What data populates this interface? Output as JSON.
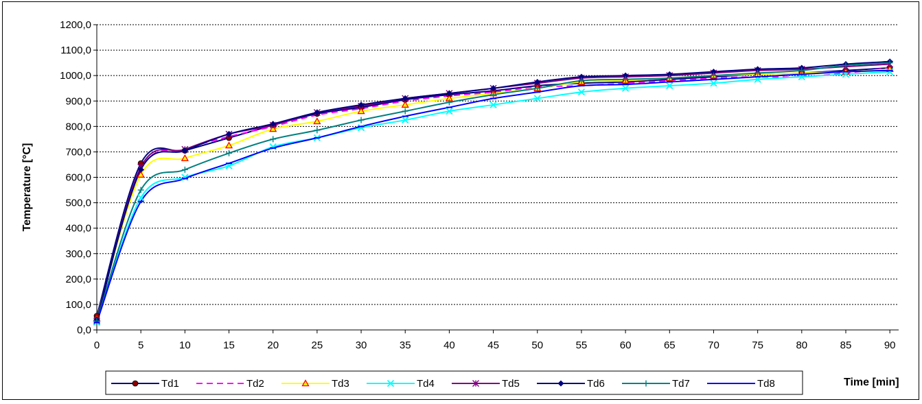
{
  "chart_data": {
    "type": "line",
    "xlabel": "Time [min]",
    "ylabel": "Temperature [°C]",
    "xlim": [
      0,
      91
    ],
    "ylim": [
      0,
      1200
    ],
    "x_ticks": [
      0,
      5,
      10,
      15,
      20,
      25,
      30,
      35,
      40,
      45,
      50,
      55,
      60,
      65,
      70,
      75,
      80,
      85,
      90
    ],
    "y_ticks": [
      "0,0",
      "100,0",
      "200,0",
      "300,0",
      "400,0",
      "500,0",
      "600,0",
      "700,0",
      "800,0",
      "900,0",
      "1000,0",
      "1100,0",
      "1200,0"
    ],
    "grid": "horizontal dotted",
    "legend_position": "bottom",
    "x": [
      0,
      5,
      10,
      15,
      20,
      25,
      30,
      35,
      40,
      45,
      50,
      55,
      60,
      65,
      70,
      75,
      80,
      85,
      90
    ],
    "series": [
      {
        "name": "Td1",
        "color": "#000080",
        "marker": "circle",
        "marker_color": "#8b0000",
        "dash": false,
        "values": [
          55,
          655,
          705,
          755,
          805,
          850,
          875,
          905,
          925,
          940,
          960,
          970,
          975,
          985,
          995,
          1005,
          1010,
          1020,
          1030
        ]
      },
      {
        "name": "Td2",
        "color": "#ff00ff",
        "marker": "none",
        "dash": true,
        "values": [
          40,
          630,
          710,
          760,
          800,
          845,
          870,
          900,
          920,
          935,
          955,
          960,
          970,
          980,
          990,
          995,
          995,
          1010,
          1030
        ]
      },
      {
        "name": "Td3",
        "color": "#ffff00",
        "marker": "triangle",
        "marker_color": "#ff0000",
        "dash": false,
        "values": [
          45,
          610,
          675,
          725,
          790,
          820,
          860,
          885,
          910,
          930,
          950,
          975,
          980,
          990,
          1000,
          1005,
          1010,
          1015,
          1025
        ]
      },
      {
        "name": "Td4",
        "color": "#00ffff",
        "marker": "x",
        "marker_color": "#00ffff",
        "dash": false,
        "values": [
          30,
          520,
          600,
          645,
          720,
          755,
          795,
          825,
          860,
          885,
          910,
          935,
          950,
          960,
          970,
          985,
          995,
          1005,
          1015
        ]
      },
      {
        "name": "Td5",
        "color": "#800080",
        "marker": "asterisk",
        "marker_color": "#800080",
        "dash": false,
        "values": [
          35,
          640,
          710,
          770,
          805,
          855,
          880,
          910,
          930,
          950,
          970,
          990,
          995,
          1000,
          1010,
          1020,
          1025,
          1035,
          1045
        ]
      },
      {
        "name": "Td6",
        "color": "#000080",
        "marker": "diamond",
        "marker_color": "#000080",
        "dash": false,
        "values": [
          40,
          630,
          705,
          770,
          810,
          855,
          885,
          910,
          930,
          950,
          975,
          995,
          1000,
          1005,
          1015,
          1025,
          1030,
          1045,
          1055
        ]
      },
      {
        "name": "Td7",
        "color": "#008080",
        "marker": "plus",
        "marker_color": "#008080",
        "dash": false,
        "values": [
          35,
          550,
          630,
          695,
          750,
          785,
          825,
          860,
          895,
          925,
          950,
          980,
          985,
          990,
          1000,
          1010,
          1020,
          1040,
          1050
        ]
      },
      {
        "name": "Td8",
        "color": "#0000ff",
        "marker": "dash",
        "marker_color": "#0000ff",
        "dash": false,
        "values": [
          30,
          505,
          595,
          655,
          715,
          755,
          800,
          840,
          875,
          910,
          935,
          960,
          965,
          975,
          985,
          995,
          1005,
          1015,
          1020
        ]
      }
    ]
  }
}
